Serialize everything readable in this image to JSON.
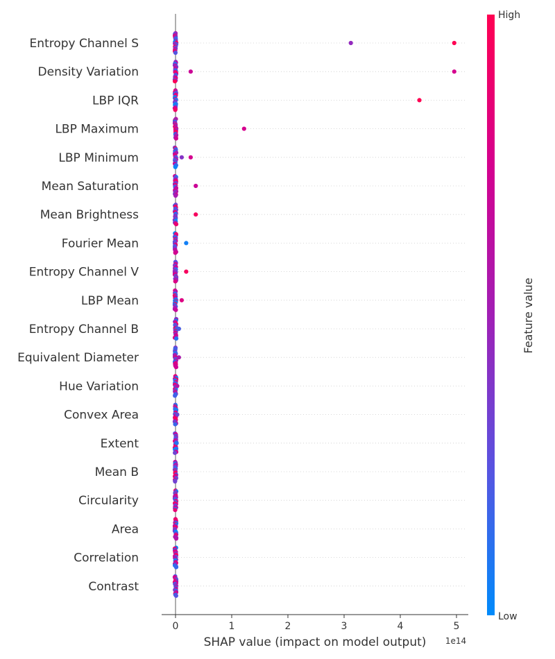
{
  "chart_data": {
    "type": "scatter",
    "subtype": "shap-beeswarm",
    "xlabel": "SHAP value (impact on model output)",
    "x_exponent_label": "1e14",
    "x_ticks": [
      0,
      1,
      2,
      3,
      4,
      5
    ],
    "xlim": [
      -0.25,
      5.2
    ],
    "grid": "horizontal dotted per feature",
    "colorbar": {
      "title": "Feature value",
      "high_label": "High",
      "low_label": "Low",
      "colors": [
        "#008bfb",
        "#5a52e0",
        "#a11fb5",
        "#d5008e",
        "#ff0052"
      ]
    },
    "features": [
      {
        "name": "Entropy Channel S",
        "outliers": [
          {
            "x": 3.12,
            "v": 0.45
          },
          {
            "x": 4.96,
            "v": 1.0
          }
        ]
      },
      {
        "name": "Density Variation",
        "outliers": [
          {
            "x": 0.27,
            "v": 0.7
          },
          {
            "x": 4.96,
            "v": 0.75
          }
        ]
      },
      {
        "name": "LBP IQR",
        "outliers": [
          {
            "x": 4.34,
            "v": 1.0
          }
        ]
      },
      {
        "name": "LBP Maximum",
        "outliers": [
          {
            "x": 1.22,
            "v": 0.75
          }
        ]
      },
      {
        "name": "LBP Minimum",
        "outliers": [
          {
            "x": 0.11,
            "v": 0.4
          },
          {
            "x": 0.27,
            "v": 0.75
          }
        ]
      },
      {
        "name": "Mean Saturation",
        "outliers": [
          {
            "x": 0.36,
            "v": 0.7
          }
        ]
      },
      {
        "name": "Mean Brightness",
        "outliers": [
          {
            "x": 0.36,
            "v": 0.95
          }
        ]
      },
      {
        "name": "Fourier Mean",
        "outliers": [
          {
            "x": 0.19,
            "v": 0.05
          }
        ]
      },
      {
        "name": "Entropy Channel V",
        "outliers": [
          {
            "x": 0.19,
            "v": 0.95
          }
        ]
      },
      {
        "name": "LBP Mean",
        "outliers": [
          {
            "x": 0.11,
            "v": 0.8
          }
        ]
      },
      {
        "name": "Entropy Channel B",
        "outliers": [
          {
            "x": 0.06,
            "v": 0.2
          }
        ]
      },
      {
        "name": "Equivalent Diameter",
        "outliers": [
          {
            "x": 0.06,
            "v": 0.55
          }
        ]
      },
      {
        "name": "Hue Variation",
        "outliers": [
          {
            "x": 0.03,
            "v": 0.6
          }
        ]
      },
      {
        "name": "Convex Area",
        "outliers": [
          {
            "x": 0.03,
            "v": 0.3
          }
        ]
      },
      {
        "name": "Extent",
        "outliers": [
          {
            "x": 0.02,
            "v": 0.1
          }
        ]
      },
      {
        "name": "Mean B",
        "outliers": []
      },
      {
        "name": "Circularity",
        "outliers": []
      },
      {
        "name": "Area",
        "outliers": []
      },
      {
        "name": "Correlation",
        "outliers": []
      },
      {
        "name": "Contrast",
        "outliers": []
      }
    ]
  }
}
